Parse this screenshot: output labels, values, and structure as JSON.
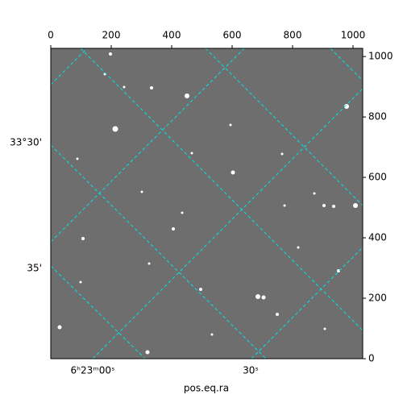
{
  "chart_data": {
    "type": "image",
    "xlabel": "pos.eq.ra",
    "xlim": [
      0,
      1032
    ],
    "ylim": [
      0,
      1027
    ],
    "xticks": [
      0,
      200,
      400,
      600,
      800,
      1000
    ],
    "yticks": [
      0,
      200,
      400,
      600,
      800,
      1000
    ],
    "ra_labels": [
      "6ʰ23ᵐ00ˢ",
      "30ˢ"
    ],
    "dec_labels": [
      "33°30'",
      "35'"
    ],
    "grid_color": "#00e5e5"
  }
}
